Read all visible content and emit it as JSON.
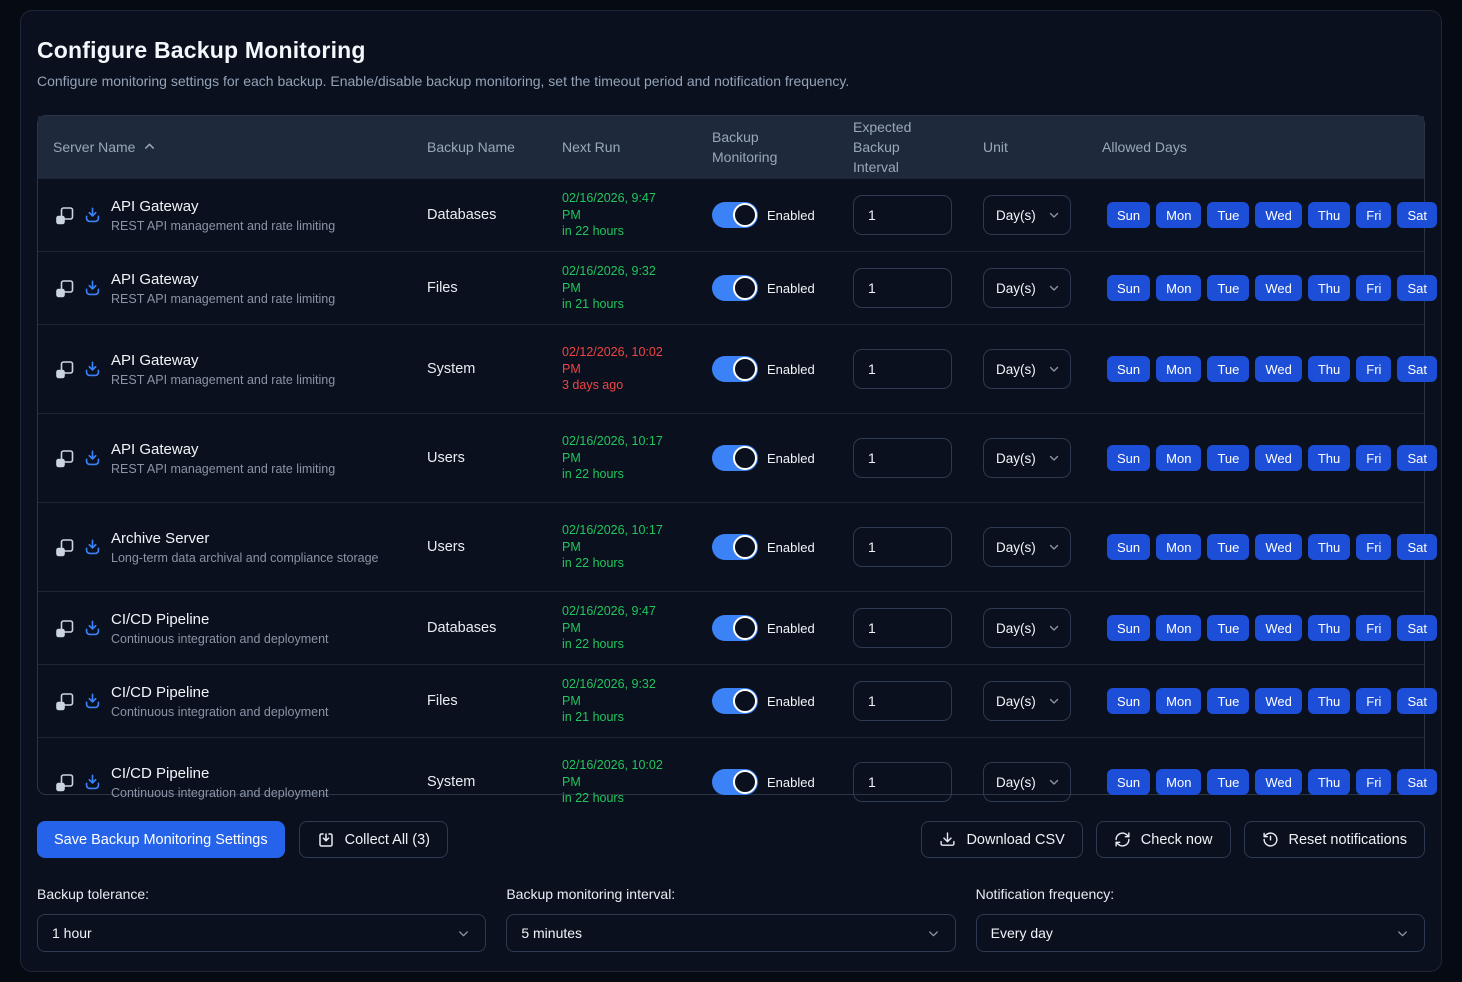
{
  "header": {
    "title": "Configure Backup Monitoring",
    "subtitle": "Configure monitoring settings for each backup. Enable/disable backup monitoring, set the timeout period and notification frequency."
  },
  "table": {
    "columns": {
      "server_name": "Server Name",
      "backup_name": "Backup Name",
      "next_run": "Next Run",
      "backup_monitoring": "Backup Monitoring",
      "expected_backup_interval": "Expected Backup Interval",
      "unit": "Unit",
      "allowed_days": "Allowed Days"
    },
    "sort": {
      "column": "Server Name",
      "direction": "ascending",
      "icon": "chevron-up-icon"
    },
    "rows": [
      {
        "server": "API Gateway",
        "server_desc": "REST API management and rate limiting",
        "backup": "Databases",
        "next_run_date": "02/16/2026, 9:47 PM",
        "next_run_relative": "in 22 hours",
        "status": "upcoming",
        "size": "sm",
        "toggle_label": "Enabled",
        "monitoring_enabled": true,
        "interval": "1",
        "unit": "Day(s)",
        "days": [
          "Sun",
          "Mon",
          "Tue",
          "Wed",
          "Thu",
          "Fri",
          "Sat"
        ]
      },
      {
        "server": "API Gateway",
        "server_desc": "REST API management and rate limiting",
        "backup": "Files",
        "next_run_date": "02/16/2026, 9:32 PM",
        "next_run_relative": "in 21 hours",
        "status": "upcoming",
        "size": "sm",
        "toggle_label": "Enabled",
        "monitoring_enabled": true,
        "interval": "1",
        "unit": "Day(s)",
        "days": [
          "Sun",
          "Mon",
          "Tue",
          "Wed",
          "Thu",
          "Fri",
          "Sat"
        ]
      },
      {
        "server": "API Gateway",
        "server_desc": "REST API management and rate limiting",
        "backup": "System",
        "next_run_date": "02/12/2026, 10:02 PM",
        "next_run_relative": "3 days ago",
        "status": "overdue",
        "size": "lg",
        "toggle_label": "Enabled",
        "monitoring_enabled": true,
        "interval": "1",
        "unit": "Day(s)",
        "days": [
          "Sun",
          "Mon",
          "Tue",
          "Wed",
          "Thu",
          "Fri",
          "Sat"
        ]
      },
      {
        "server": "API Gateway",
        "server_desc": "REST API management and rate limiting",
        "backup": "Users",
        "next_run_date": "02/16/2026, 10:17 PM",
        "next_run_relative": "in 22 hours",
        "status": "upcoming",
        "size": "lg",
        "toggle_label": "Enabled",
        "monitoring_enabled": true,
        "interval": "1",
        "unit": "Day(s)",
        "days": [
          "Sun",
          "Mon",
          "Tue",
          "Wed",
          "Thu",
          "Fri",
          "Sat"
        ]
      },
      {
        "server": "Archive Server",
        "server_desc": "Long-term data archival and compliance storage",
        "backup": "Users",
        "next_run_date": "02/16/2026, 10:17 PM",
        "next_run_relative": "in 22 hours",
        "status": "upcoming",
        "size": "lg",
        "toggle_label": "Enabled",
        "monitoring_enabled": true,
        "interval": "1",
        "unit": "Day(s)",
        "days": [
          "Sun",
          "Mon",
          "Tue",
          "Wed",
          "Thu",
          "Fri",
          "Sat"
        ]
      },
      {
        "server": "CI/CD Pipeline",
        "server_desc": "Continuous integration and deployment",
        "backup": "Databases",
        "next_run_date": "02/16/2026, 9:47 PM",
        "next_run_relative": "in 22 hours",
        "status": "upcoming",
        "size": "sm",
        "toggle_label": "Enabled",
        "monitoring_enabled": true,
        "interval": "1",
        "unit": "Day(s)",
        "days": [
          "Sun",
          "Mon",
          "Tue",
          "Wed",
          "Thu",
          "Fri",
          "Sat"
        ]
      },
      {
        "server": "CI/CD Pipeline",
        "server_desc": "Continuous integration and deployment",
        "backup": "Files",
        "next_run_date": "02/16/2026, 9:32 PM",
        "next_run_relative": "in 21 hours",
        "status": "upcoming",
        "size": "sm",
        "toggle_label": "Enabled",
        "monitoring_enabled": true,
        "interval": "1",
        "unit": "Day(s)",
        "days": [
          "Sun",
          "Mon",
          "Tue",
          "Wed",
          "Thu",
          "Fri",
          "Sat"
        ]
      },
      {
        "server": "CI/CD Pipeline",
        "server_desc": "Continuous integration and deployment",
        "backup": "System",
        "next_run_date": "02/16/2026, 10:02 PM",
        "next_run_relative": "in 22 hours",
        "status": "upcoming",
        "size": "lg",
        "toggle_label": "Enabled",
        "monitoring_enabled": true,
        "interval": "1",
        "unit": "Day(s)",
        "days": [
          "Sun",
          "Mon",
          "Tue",
          "Wed",
          "Thu",
          "Fri",
          "Sat"
        ]
      }
    ]
  },
  "actions": {
    "save_label": "Save Backup Monitoring Settings",
    "collect_all_label": "Collect All (3)",
    "download_csv_label": "Download CSV",
    "check_now_label": "Check now",
    "reset_notifications_label": "Reset notifications"
  },
  "settings": [
    {
      "label": "Backup tolerance:",
      "value": "1 hour"
    },
    {
      "label": "Backup monitoring interval:",
      "value": "5 minutes"
    },
    {
      "label": "Notification frequency:",
      "value": "Every day"
    }
  ],
  "icons": [
    "server-icon",
    "download-icon",
    "chevron-up-icon",
    "chevron-down-icon",
    "collect-icon",
    "download-csv-icon",
    "refresh-icon",
    "history-icon"
  ],
  "colors": {
    "accent": "#2563eb",
    "toggle_on": "#3b82f6",
    "day_button": "#1d4ed8",
    "upcoming": "#22c55e",
    "overdue": "#ef4444",
    "header_bg": "#1e2a3c",
    "card_bg": "#0a101d"
  }
}
